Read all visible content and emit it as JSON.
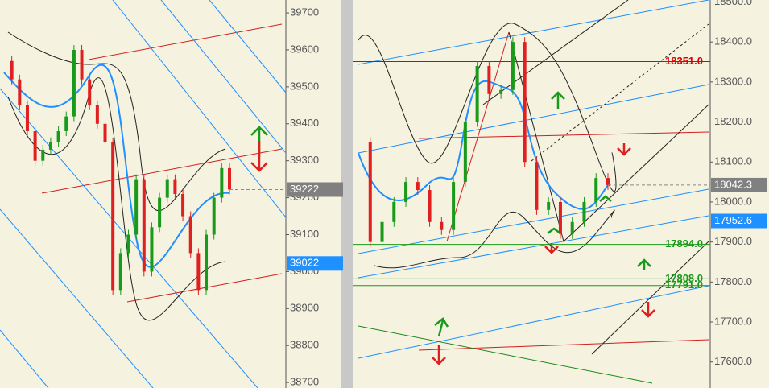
{
  "chart_data": [
    {
      "type": "candlestick",
      "values": [
        39570,
        39520,
        39450,
        39380,
        39300,
        39330,
        39350,
        39380,
        39420,
        39600,
        39520,
        39450,
        39400,
        39350,
        38950,
        39050,
        39100,
        39250,
        39000,
        39120,
        39200,
        39250,
        39210,
        39150,
        39050,
        38950,
        39100,
        39200,
        39280,
        39222
      ],
      "ylim": [
        38685,
        39735
      ],
      "yticks": [
        39700,
        39600,
        39500,
        39400,
        39300,
        39200,
        39100,
        39000,
        38900,
        38800,
        38700
      ],
      "price_labels": [
        {
          "value": 39222,
          "color": "#808080"
        },
        {
          "value": 39022,
          "color": "#1e90ff"
        }
      ]
    },
    {
      "type": "candlestick",
      "values": [
        18150,
        17900,
        17950,
        18000,
        18050,
        18030,
        17950,
        17930,
        18050,
        18200,
        18340,
        18270,
        18280,
        18400,
        18100,
        17980,
        18000,
        17920,
        17950,
        18000,
        18060,
        18042.3
      ],
      "ylim": [
        17535,
        18505
      ],
      "yticks": [
        {
          "value": 18500,
          "label": "18500.0"
        },
        {
          "value": 18400,
          "label": "18400.0"
        },
        {
          "value": 18300,
          "label": "18300.0"
        },
        {
          "value": 18200,
          "label": "18200.0"
        },
        {
          "value": 18100,
          "label": "18100.0"
        },
        {
          "value": 18000,
          "label": "18000.0"
        },
        {
          "value": 17900,
          "label": "17900.0"
        },
        {
          "value": 17800,
          "label": "17800.0"
        },
        {
          "value": 17700,
          "label": "17700.0"
        },
        {
          "value": 17600,
          "label": "17600.0"
        }
      ],
      "price_labels": [
        {
          "value": 18042.3,
          "color": "#808080"
        },
        {
          "value": 17952.6,
          "color": "#1e90ff"
        }
      ],
      "levels": [
        {
          "value": 18351,
          "label": "18351.0",
          "color": "#e00000"
        },
        {
          "value": 17894,
          "label": "17894.0",
          "color": "#1a9a1a"
        },
        {
          "value": 17808,
          "label": "17808.0",
          "color": "#1a9a1a"
        },
        {
          "value": 17791,
          "label": "17791.0",
          "color": "#1a9a1a"
        }
      ]
    }
  ]
}
